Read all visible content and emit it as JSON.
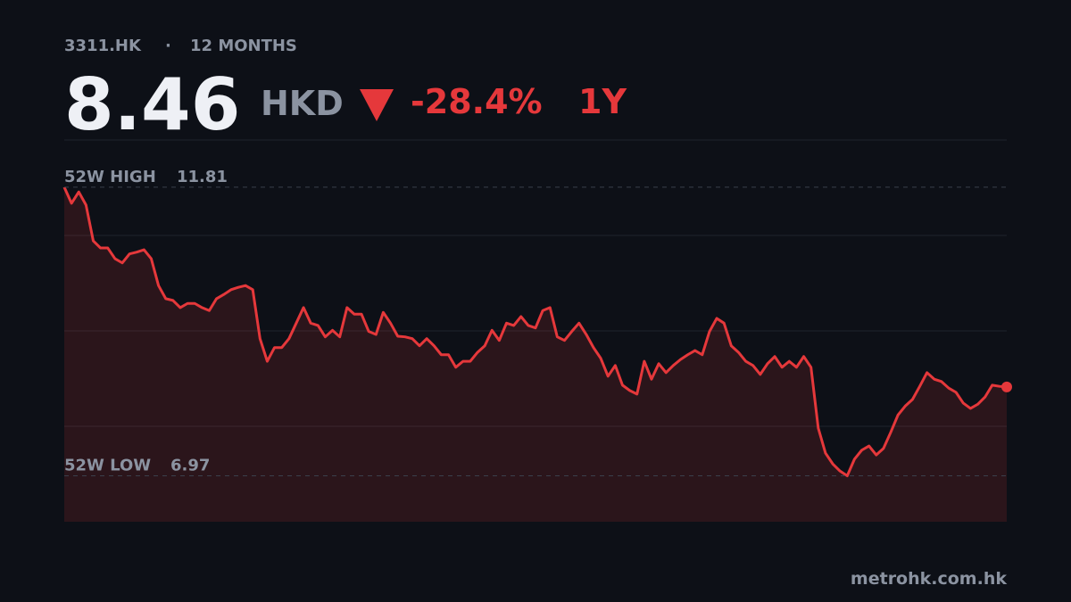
{
  "chart_data": {
    "type": "line",
    "ticker": "3311.HK",
    "separator": "·",
    "period_label": "12 MONTHS",
    "price": 8.46,
    "currency": "HKD",
    "change": {
      "value": -28.4,
      "label": "-28.4%"
    },
    "change_period": "1Y",
    "high_label": "52W HIGH",
    "high": 11.81,
    "low_label": "52W LOW",
    "low": 6.97,
    "source": "metrohk.com.hk",
    "color": "#e5383b",
    "ylim": [
      6.2,
      12.6
    ],
    "yticks": [
      7.8,
      9.4,
      11.0
    ],
    "grid": true,
    "values": [
      11.81,
      11.54,
      11.73,
      11.51,
      10.91,
      10.79,
      10.79,
      10.61,
      10.54,
      10.69,
      10.72,
      10.76,
      10.61,
      10.16,
      9.94,
      9.91,
      9.79,
      9.86,
      9.86,
      9.79,
      9.74,
      9.94,
      10.01,
      10.09,
      10.13,
      10.16,
      10.09,
      9.27,
      8.89,
      9.12,
      9.12,
      9.27,
      9.53,
      9.79,
      9.53,
      9.49,
      9.3,
      9.41,
      9.3,
      9.79,
      9.68,
      9.68,
      9.39,
      9.34,
      9.71,
      9.53,
      9.31,
      9.3,
      9.27,
      9.15,
      9.27,
      9.15,
      9.0,
      9.0,
      8.79,
      8.89,
      8.89,
      9.04,
      9.15,
      9.41,
      9.24,
      9.53,
      9.49,
      9.64,
      9.49,
      9.45,
      9.74,
      9.79,
      9.3,
      9.24,
      9.39,
      9.53,
      9.34,
      9.12,
      8.94,
      8.64,
      8.82,
      8.49,
      8.4,
      8.34,
      8.89,
      8.59,
      8.85,
      8.7,
      8.82,
      8.92,
      9.0,
      9.07,
      9.0,
      9.39,
      9.61,
      9.53,
      9.15,
      9.04,
      8.89,
      8.82,
      8.67,
      8.85,
      8.97,
      8.79,
      8.89,
      8.79,
      8.97,
      8.79,
      7.77,
      7.35,
      7.17,
      7.05,
      6.97,
      7.25,
      7.4,
      7.47,
      7.32,
      7.43,
      7.7,
      7.99,
      8.14,
      8.25,
      8.47,
      8.7,
      8.59,
      8.55,
      8.44,
      8.37,
      8.19,
      8.1,
      8.17,
      8.29,
      8.49,
      8.47,
      8.46
    ]
  }
}
